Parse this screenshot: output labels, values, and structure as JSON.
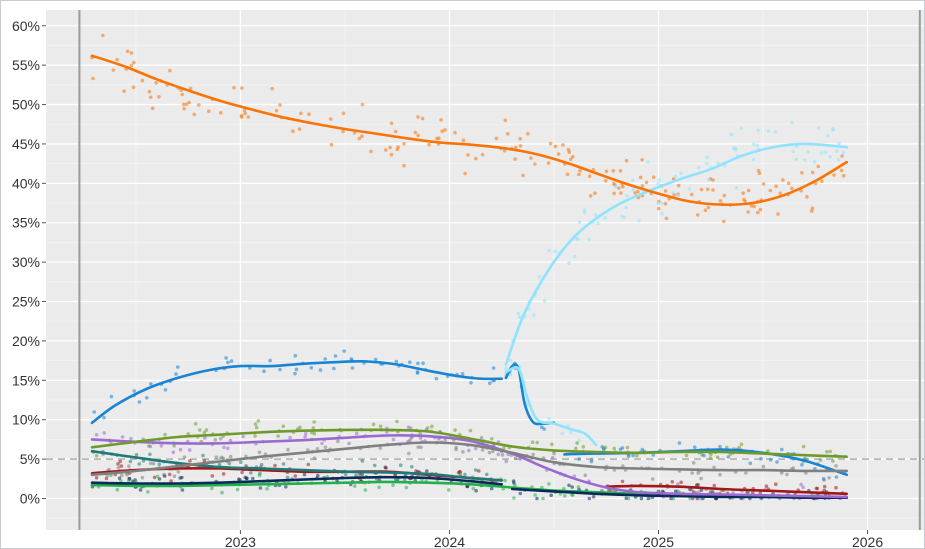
{
  "chart_data": {
    "type": "line",
    "title": "",
    "xlabel": "",
    "ylabel": "",
    "ylim": [
      -0.04,
      0.62
    ],
    "xlim": [
      2022.07,
      2026.27
    ],
    "y_ticks": [
      {
        "value": 0.0,
        "label": "0%"
      },
      {
        "value": 0.05,
        "label": "5%"
      },
      {
        "value": 0.1,
        "label": "10%"
      },
      {
        "value": 0.15,
        "label": "15%"
      },
      {
        "value": 0.2,
        "label": "20%"
      },
      {
        "value": 0.25,
        "label": "25%"
      },
      {
        "value": 0.3,
        "label": "30%"
      },
      {
        "value": 0.35,
        "label": "35%"
      },
      {
        "value": 0.4,
        "label": "40%"
      },
      {
        "value": 0.45,
        "label": "45%"
      },
      {
        "value": 0.5,
        "label": "50%"
      },
      {
        "value": 0.55,
        "label": "55%"
      },
      {
        "value": 0.6,
        "label": "60%"
      }
    ],
    "x_ticks": [
      {
        "value": 2023.0,
        "label": "2023"
      },
      {
        "value": 2024.0,
        "label": "2024"
      },
      {
        "value": 2025.0,
        "label": "2025"
      },
      {
        "value": 2026.0,
        "label": "2026"
      }
    ],
    "reference_lines": [
      {
        "orientation": "horizontal",
        "value": 0.05,
        "style": "dashed",
        "color": "#b8b8b8"
      },
      {
        "orientation": "vertical",
        "value": 2022.23,
        "style": "solid",
        "color": "#9a9a9a"
      },
      {
        "orientation": "vertical",
        "value": 2026.25,
        "style": "solid",
        "color": "#9a9a9a"
      }
    ],
    "series": [
      {
        "name": "orange",
        "color": "#f97306",
        "x": [
          2022.29,
          2022.45,
          2022.6,
          2022.75,
          2022.9,
          2023.05,
          2023.2,
          2023.35,
          2023.5,
          2023.65,
          2023.8,
          2023.95,
          2024.1,
          2024.25,
          2024.4,
          2024.55,
          2024.7,
          2024.85,
          2025.0,
          2025.15,
          2025.3,
          2025.45,
          2025.6,
          2025.75,
          2025.9
        ],
        "y": [
          0.562,
          0.548,
          0.532,
          0.518,
          0.505,
          0.494,
          0.484,
          0.476,
          0.469,
          0.463,
          0.457,
          0.452,
          0.449,
          0.445,
          0.438,
          0.427,
          0.413,
          0.399,
          0.387,
          0.377,
          0.373,
          0.375,
          0.385,
          0.403,
          0.427
        ]
      },
      {
        "name": "light blue",
        "color": "#8ee3ff",
        "x": [
          2024.27,
          2024.35,
          2024.45,
          2024.55,
          2024.65,
          2024.8,
          2024.95,
          2025.1,
          2025.25,
          2025.4,
          2025.55,
          2025.7,
          2025.9
        ],
        "y": [
          0.17,
          0.23,
          0.28,
          0.318,
          0.345,
          0.372,
          0.39,
          0.405,
          0.418,
          0.435,
          0.446,
          0.45,
          0.446
        ]
      },
      {
        "name": "blue",
        "color": "#1784d4",
        "x": [
          2022.29,
          2022.4,
          2022.55,
          2022.7,
          2022.85,
          2023.0,
          2023.15,
          2023.3,
          2023.45,
          2023.6,
          2023.75,
          2023.9,
          2024.05,
          2024.15,
          2024.25
        ],
        "y": [
          0.096,
          0.118,
          0.139,
          0.153,
          0.163,
          0.168,
          0.168,
          0.171,
          0.173,
          0.174,
          0.17,
          0.162,
          0.155,
          0.152,
          0.152
        ]
      },
      {
        "name": "light blue post-split",
        "color": "#8ee3ff",
        "x": [
          2024.27,
          2024.33,
          2024.37,
          2024.42,
          2024.5,
          2024.58,
          2024.65,
          2024.7
        ],
        "y": [
          0.16,
          0.165,
          0.13,
          0.1,
          0.095,
          0.088,
          0.082,
          0.068
        ]
      },
      {
        "name": "blue post-split",
        "color": "#1784d4",
        "x": [
          2024.27,
          2024.3,
          2024.33,
          2024.36,
          2024.4,
          2024.45,
          2024.5
        ],
        "y": [
          0.153,
          0.168,
          0.165,
          0.12,
          0.097,
          0.095,
          0.096
        ]
      },
      {
        "name": "olive green",
        "color": "#6e9a2c",
        "x": [
          2022.29,
          2022.5,
          2022.7,
          2022.9,
          2023.1,
          2023.3,
          2023.5,
          2023.7,
          2023.9,
          2024.1,
          2024.3,
          2024.5,
          2024.7,
          2024.9,
          2025.1,
          2025.3,
          2025.5,
          2025.7,
          2025.9
        ],
        "y": [
          0.065,
          0.072,
          0.078,
          0.081,
          0.084,
          0.086,
          0.087,
          0.087,
          0.085,
          0.076,
          0.066,
          0.061,
          0.059,
          0.058,
          0.059,
          0.059,
          0.057,
          0.055,
          0.053
        ]
      },
      {
        "name": "grey",
        "color": "#808080",
        "x": [
          2022.29,
          2022.5,
          2022.7,
          2022.9,
          2023.1,
          2023.3,
          2023.5,
          2023.7,
          2023.9,
          2024.1,
          2024.3,
          2024.5,
          2024.7,
          2024.9,
          2025.1,
          2025.3,
          2025.5,
          2025.7,
          2025.9
        ],
        "y": [
          0.03,
          0.035,
          0.041,
          0.047,
          0.053,
          0.058,
          0.063,
          0.068,
          0.071,
          0.068,
          0.058,
          0.046,
          0.04,
          0.038,
          0.037,
          0.036,
          0.036,
          0.035,
          0.035
        ]
      },
      {
        "name": "purple",
        "color": "#9a6ad0",
        "x": [
          2022.29,
          2022.5,
          2022.7,
          2022.9,
          2023.1,
          2023.3,
          2023.5,
          2023.7,
          2023.9,
          2024.1,
          2024.3,
          2024.45,
          2024.6,
          2024.75,
          2024.9,
          2025.1,
          2025.3,
          2025.5,
          2025.7,
          2025.9
        ],
        "y": [
          0.075,
          0.072,
          0.07,
          0.07,
          0.072,
          0.074,
          0.077,
          0.08,
          0.079,
          0.073,
          0.057,
          0.04,
          0.025,
          0.014,
          0.008,
          0.006,
          0.005,
          0.004,
          0.003,
          0.002
        ]
      },
      {
        "name": "teal",
        "color": "#1e7a78",
        "x": [
          2022.29,
          2022.5,
          2022.7,
          2022.9,
          2023.1,
          2023.3,
          2023.5,
          2023.7,
          2023.9,
          2024.1,
          2024.25
        ],
        "y": [
          0.06,
          0.052,
          0.045,
          0.04,
          0.038,
          0.036,
          0.034,
          0.033,
          0.031,
          0.026,
          0.023
        ]
      },
      {
        "name": "blue low",
        "color": "#1784d4",
        "x": [
          2024.55,
          2024.7,
          2024.9,
          2025.1,
          2025.3,
          2025.5,
          2025.7,
          2025.9
        ],
        "y": [
          0.056,
          0.057,
          0.058,
          0.06,
          0.062,
          0.058,
          0.048,
          0.03
        ]
      },
      {
        "name": "dark red",
        "color": "#a01818",
        "x": [
          2022.29,
          2022.5,
          2022.7,
          2022.9,
          2023.1,
          2023.3,
          2023.5,
          2023.7,
          2023.9,
          2024.1,
          2024.25
        ],
        "y": [
          0.032,
          0.036,
          0.038,
          0.038,
          0.036,
          0.034,
          0.034,
          0.034,
          0.03,
          0.026,
          0.023
        ]
      },
      {
        "name": "dark red later",
        "color": "#a01818",
        "x": [
          2024.75,
          2024.9,
          2025.1,
          2025.3,
          2025.5,
          2025.7,
          2025.9
        ],
        "y": [
          0.015,
          0.016,
          0.015,
          0.012,
          0.01,
          0.008,
          0.006
        ]
      },
      {
        "name": "navy",
        "color": "#0b2a5a",
        "x": [
          2022.29,
          2022.5,
          2022.7,
          2022.9,
          2023.1,
          2023.3,
          2023.5,
          2023.7,
          2023.9,
          2024.1,
          2024.25
        ],
        "y": [
          0.02,
          0.019,
          0.019,
          0.02,
          0.022,
          0.024,
          0.026,
          0.027,
          0.026,
          0.022,
          0.018
        ]
      },
      {
        "name": "navy later",
        "color": "#0b2a5a",
        "x": [
          2024.3,
          2024.5,
          2024.7,
          2024.9,
          2025.1,
          2025.3,
          2025.5,
          2025.7,
          2025.9
        ],
        "y": [
          0.012,
          0.009,
          0.006,
          0.004,
          0.003,
          0.002,
          0.002,
          0.001,
          0.001
        ]
      },
      {
        "name": "green",
        "color": "#23b04a",
        "x": [
          2022.29,
          2022.5,
          2022.7,
          2022.9,
          2023.1,
          2023.3,
          2023.5,
          2023.7,
          2023.9,
          2024.1,
          2024.3,
          2024.5,
          2024.7,
          2024.9,
          2025.1,
          2025.3,
          2025.5,
          2025.7,
          2025.9
        ],
        "y": [
          0.017,
          0.016,
          0.016,
          0.017,
          0.018,
          0.019,
          0.02,
          0.021,
          0.02,
          0.018,
          0.014,
          0.01,
          0.008,
          0.006,
          0.005,
          0.004,
          0.003,
          0.002,
          0.001
        ]
      }
    ]
  }
}
